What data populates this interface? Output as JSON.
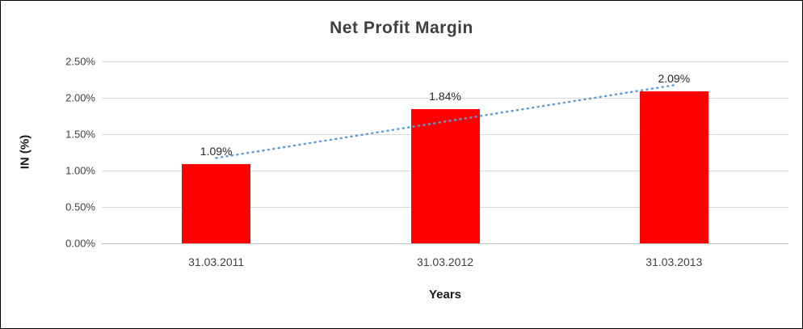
{
  "chart_data": {
    "type": "bar",
    "title": "Net Profit Margin",
    "categories": [
      "31.03.2011",
      "31.03.2012",
      "31.03.2013"
    ],
    "values": [
      1.09,
      1.84,
      2.09
    ],
    "data_labels": [
      "1.09%",
      "1.84%",
      "2.09%"
    ],
    "xlabel": "Years",
    "ylabel": "IN (%)",
    "ylim": [
      0,
      2.5
    ],
    "y_tick_step": 0.5,
    "y_ticks": [
      "0.00%",
      "0.50%",
      "1.00%",
      "1.50%",
      "2.00%",
      "2.50%"
    ],
    "grid": true,
    "legend": "none",
    "bar_color": "#ff0000",
    "gridline_color": "#d9d9d9",
    "trendline": {
      "type": "linear",
      "style": "dotted",
      "color": "#5b9bd5"
    }
  }
}
